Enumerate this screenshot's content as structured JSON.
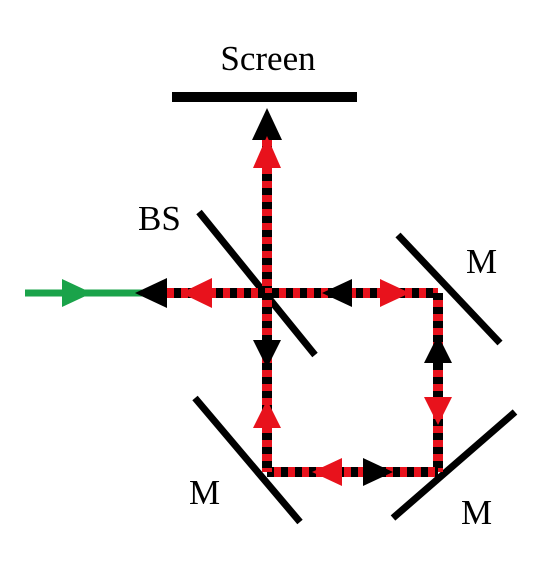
{
  "labels": {
    "screen": "Screen",
    "beam_splitter": "BS",
    "mirror_upper_right": "M",
    "mirror_lower_right": "M",
    "mirror_lower_left": "M"
  },
  "colors": {
    "background": "#ffffff",
    "optics": "#000000",
    "beam_dash_a": "#e8121c",
    "beam_dash_b": "#000000",
    "input_beam": "#1aa34a",
    "arrow_red": "#e8121c",
    "arrow_black": "#000000"
  }
}
